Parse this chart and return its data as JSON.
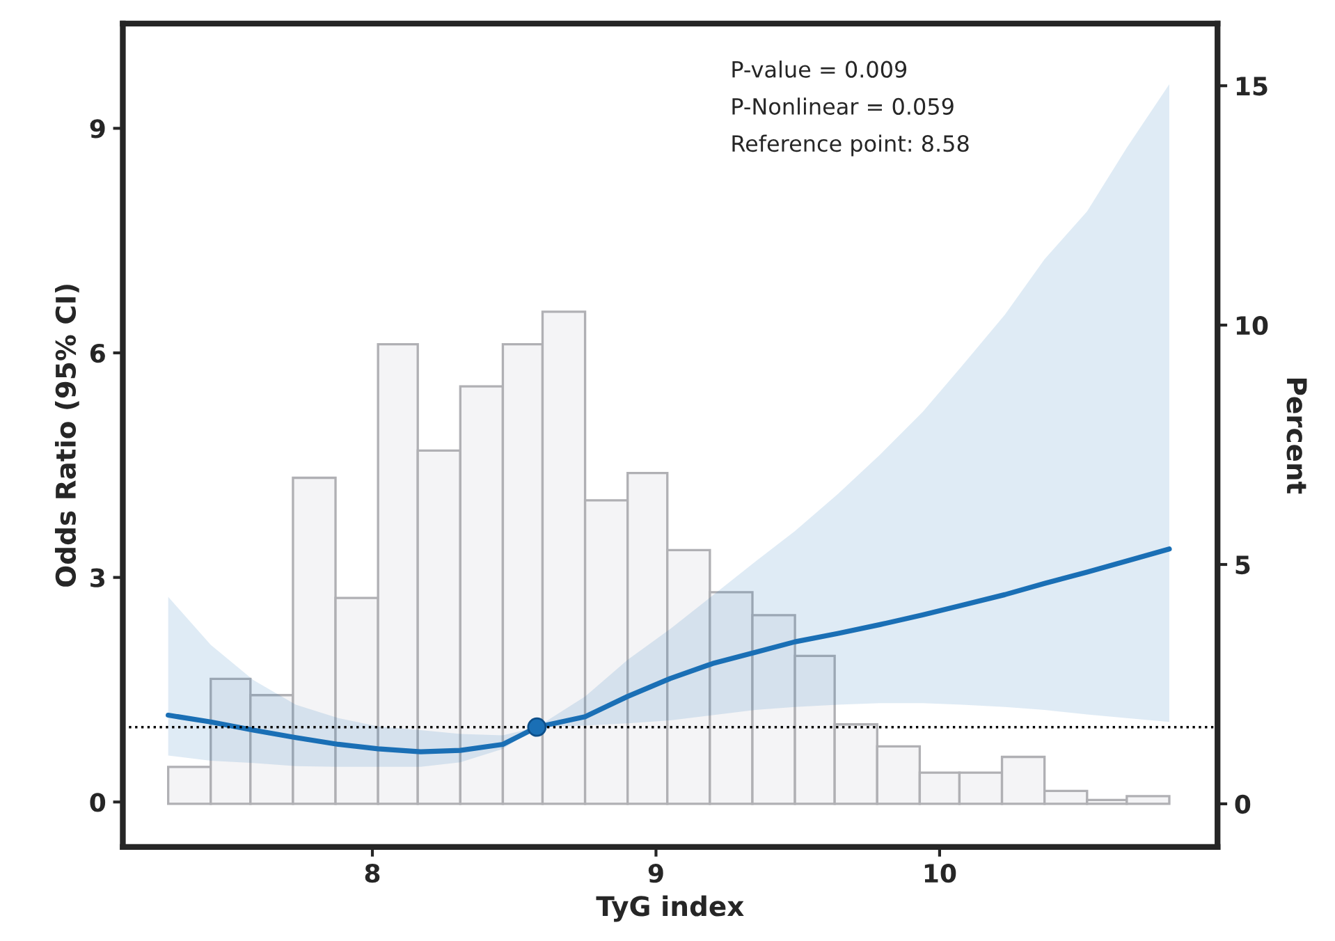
{
  "chart_data": {
    "type": "line",
    "xlabel": "TyG index",
    "ylabel": "Odds Ratio (95% CI)",
    "y2label": "Percent",
    "annotations": [
      "P-value = 0.009",
      "P-Nonlinear = 0.059",
      "Reference point: 8.58"
    ],
    "xlim": [
      7.12,
      10.98
    ],
    "xticks": [
      8,
      9,
      10
    ],
    "ylim": [
      -0.6,
      10.4
    ],
    "yticks": [
      0,
      3,
      6,
      9
    ],
    "y2lim": [
      -0.9,
      16.3
    ],
    "y2ticks": [
      0,
      5,
      10,
      15
    ],
    "grid": false,
    "legend": false,
    "ref_lines": [
      {
        "axis": "y",
        "value": 1,
        "label": null,
        "color": "#000000",
        "line_style": "dotted"
      }
    ],
    "series": [
      {
        "type": "histogram",
        "axis": "y2",
        "color": "#f4f4f6",
        "bins": [
          7.28,
          7.43,
          7.57,
          7.72,
          7.87,
          8.02,
          8.16,
          8.31,
          8.46,
          8.6,
          8.75,
          8.9,
          9.04,
          9.19,
          9.34,
          9.49,
          9.63,
          9.78,
          9.93,
          10.07,
          10.22,
          10.37,
          10.52,
          10.66,
          10.81
        ],
        "values": [
          0.77,
          2.61,
          2.27,
          6.81,
          4.3,
          9.6,
          7.38,
          8.72,
          9.6,
          10.28,
          6.34,
          6.91,
          5.3,
          4.42,
          3.94,
          3.09,
          1.66,
          1.2,
          0.65,
          0.65,
          0.98,
          0.27,
          0.08,
          0.16
        ]
      },
      {
        "color": "#1a6fb5",
        "marker": "none",
        "line_style": "solid",
        "x": [
          7.28,
          7.43,
          7.58,
          7.73,
          7.88,
          8.02,
          8.17,
          8.31,
          8.46,
          8.58,
          8.75,
          8.9,
          9.05,
          9.2,
          9.35,
          9.49,
          9.64,
          9.79,
          9.94,
          10.08,
          10.23,
          10.37,
          10.52,
          10.66,
          10.81
        ],
        "values": [
          1.16,
          1.07,
          0.96,
          0.86,
          0.77,
          0.71,
          0.67,
          0.69,
          0.77,
          1.0,
          1.14,
          1.41,
          1.65,
          1.85,
          2.0,
          2.14,
          2.25,
          2.37,
          2.5,
          2.63,
          2.77,
          2.92,
          3.07,
          3.22,
          3.38
        ],
        "lower": [
          0.62,
          0.55,
          0.52,
          0.48,
          0.47,
          0.47,
          0.47,
          0.53,
          0.71,
          1.0,
          1.02,
          1.05,
          1.09,
          1.16,
          1.23,
          1.27,
          1.3,
          1.32,
          1.32,
          1.3,
          1.27,
          1.23,
          1.17,
          1.12,
          1.07
        ],
        "upper": [
          2.74,
          2.1,
          1.63,
          1.3,
          1.12,
          1.01,
          0.96,
          0.91,
          0.89,
          1.0,
          1.41,
          1.9,
          2.31,
          2.76,
          3.21,
          3.62,
          4.11,
          4.64,
          5.21,
          5.83,
          6.51,
          7.25,
          7.89,
          8.74,
          9.59
        ]
      },
      {
        "type": "scatter",
        "color": "#1a6fb5",
        "marker": "circle",
        "x": [
          8.58
        ],
        "values": [
          1.0
        ]
      }
    ]
  }
}
